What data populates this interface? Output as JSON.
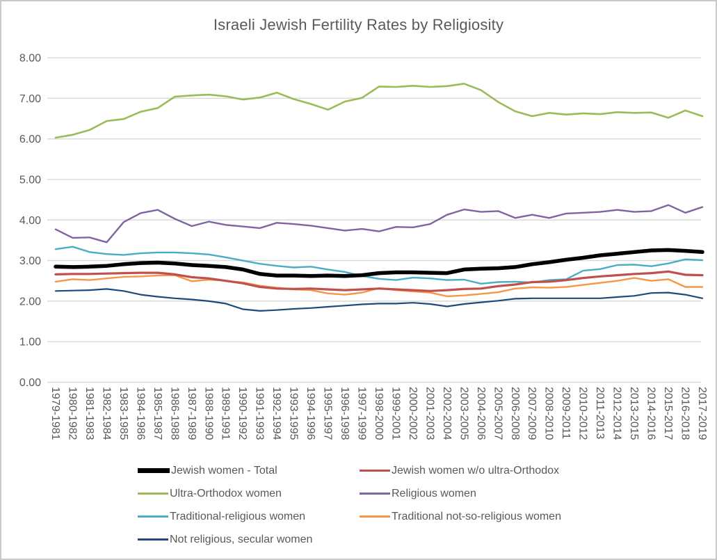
{
  "window": {
    "background": "#FFFFFF",
    "border_color": "#C9C9C9",
    "text_color": "#595959",
    "gridline_color": "#D9D9D9"
  },
  "chart_data": {
    "type": "line",
    "title": "Israeli Jewish Fertility Rates by Religiosity",
    "xlabel": "",
    "ylabel": "",
    "ylim": [
      0,
      8
    ],
    "y_tick_labels": [
      "0.00",
      "1.00",
      "2.00",
      "3.00",
      "4.00",
      "5.00",
      "6.00",
      "7.00",
      "8.00"
    ],
    "grid": true,
    "legend_position": "bottom",
    "categories": [
      "1979-1981",
      "1980-1982",
      "1981-1983",
      "1982-1984",
      "1983-1985",
      "1984-1986",
      "1985-1987",
      "1986-1988",
      "1987-1989",
      "1988-1990",
      "1989-1991",
      "1990-1992",
      "1991-1993",
      "1992-1994",
      "1993-1995",
      "1994-1996",
      "1995-1997",
      "1996-1998",
      "1997-1999",
      "1998-2000",
      "1999-2001",
      "2000-2002",
      "2001-2003",
      "2002-2004",
      "2003-2005",
      "2004-2006",
      "2005-2007",
      "2006-2008",
      "2007-2009",
      "2008-2010",
      "2009-2011",
      "2010-2012",
      "2011-2013",
      "2012-2014",
      "2013-2015",
      "2014-2016",
      "2015-2017",
      "2016-2018",
      "2017-2019"
    ],
    "series": [
      {
        "id": "total",
        "name": "Jewish women - Total",
        "color": "#000000",
        "values": [
          2.85,
          2.84,
          2.85,
          2.87,
          2.91,
          2.94,
          2.95,
          2.93,
          2.89,
          2.87,
          2.84,
          2.78,
          2.67,
          2.63,
          2.63,
          2.62,
          2.63,
          2.62,
          2.64,
          2.69,
          2.71,
          2.71,
          2.7,
          2.69,
          2.78,
          2.8,
          2.81,
          2.84,
          2.91,
          2.96,
          3.02,
          3.07,
          3.13,
          3.17,
          3.21,
          3.25,
          3.26,
          3.24,
          3.21
        ]
      },
      {
        "id": "wo_ultra_orthodox",
        "name": "Jewish women w/o ultra-Orthodox",
        "color": "#C0504D",
        "values": [
          2.66,
          2.67,
          2.67,
          2.68,
          2.69,
          2.7,
          2.7,
          2.66,
          2.59,
          2.56,
          2.5,
          2.44,
          2.35,
          2.31,
          2.3,
          2.31,
          2.29,
          2.27,
          2.29,
          2.31,
          2.29,
          2.27,
          2.25,
          2.27,
          2.3,
          2.31,
          2.37,
          2.41,
          2.47,
          2.48,
          2.52,
          2.57,
          2.61,
          2.64,
          2.67,
          2.69,
          2.73,
          2.65,
          2.64
        ]
      },
      {
        "id": "ultra_orthodox",
        "name": "Ultra-Orthodox women",
        "color": "#9BBB59",
        "values": [
          6.03,
          6.1,
          6.22,
          6.44,
          6.49,
          6.67,
          6.76,
          7.04,
          7.07,
          7.09,
          7.05,
          6.97,
          7.02,
          7.14,
          6.98,
          6.86,
          6.72,
          6.92,
          7.01,
          7.29,
          7.28,
          7.31,
          7.28,
          7.3,
          7.36,
          7.2,
          6.91,
          6.68,
          6.56,
          6.64,
          6.6,
          6.63,
          6.61,
          6.66,
          6.64,
          6.65,
          6.52,
          6.7,
          6.56
        ]
      },
      {
        "id": "religious",
        "name": "Religious women",
        "color": "#8064A2",
        "values": [
          3.77,
          3.56,
          3.57,
          3.45,
          3.95,
          4.17,
          4.25,
          4.03,
          3.85,
          3.96,
          3.88,
          3.84,
          3.8,
          3.93,
          3.9,
          3.86,
          3.8,
          3.74,
          3.78,
          3.72,
          3.83,
          3.82,
          3.9,
          4.13,
          4.26,
          4.2,
          4.22,
          4.05,
          4.13,
          4.05,
          4.16,
          4.18,
          4.2,
          4.25,
          4.2,
          4.22,
          4.37,
          4.18,
          4.32
        ]
      },
      {
        "id": "traditional_religious",
        "name": "Traditional-religious women",
        "color": "#4BACC6",
        "values": [
          3.28,
          3.34,
          3.21,
          3.16,
          3.14,
          3.18,
          3.2,
          3.2,
          3.18,
          3.15,
          3.08,
          3.0,
          2.92,
          2.87,
          2.83,
          2.85,
          2.78,
          2.72,
          2.62,
          2.55,
          2.52,
          2.58,
          2.56,
          2.52,
          2.53,
          2.43,
          2.47,
          2.48,
          2.46,
          2.52,
          2.54,
          2.75,
          2.79,
          2.89,
          2.9,
          2.86,
          2.93,
          3.03,
          3.01
        ]
      },
      {
        "id": "traditional_not_so_religious",
        "name": "Traditional not-so-religious women",
        "color": "#F79646",
        "values": [
          2.48,
          2.54,
          2.52,
          2.56,
          2.6,
          2.61,
          2.63,
          2.64,
          2.49,
          2.53,
          2.5,
          2.46,
          2.38,
          2.33,
          2.29,
          2.27,
          2.19,
          2.16,
          2.21,
          2.32,
          2.27,
          2.24,
          2.21,
          2.12,
          2.14,
          2.18,
          2.22,
          2.31,
          2.34,
          2.33,
          2.35,
          2.4,
          2.45,
          2.5,
          2.57,
          2.5,
          2.54,
          2.35,
          2.35
        ]
      },
      {
        "id": "not_religious",
        "name": "Not religious, secular women",
        "color": "#1F497D",
        "values": [
          2.25,
          2.26,
          2.27,
          2.3,
          2.25,
          2.16,
          2.11,
          2.07,
          2.04,
          2.0,
          1.94,
          1.8,
          1.76,
          1.78,
          1.81,
          1.83,
          1.86,
          1.89,
          1.92,
          1.94,
          1.94,
          1.96,
          1.93,
          1.87,
          1.93,
          1.97,
          2.01,
          2.06,
          2.07,
          2.07,
          2.07,
          2.07,
          2.07,
          2.1,
          2.13,
          2.2,
          2.21,
          2.16,
          2.07
        ]
      }
    ]
  }
}
